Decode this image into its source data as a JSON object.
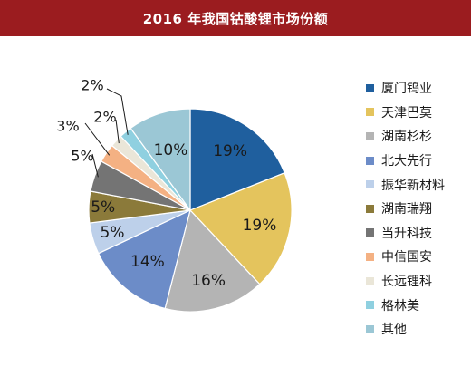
{
  "header": {
    "title": "2016 年我国钴酸锂市场份额"
  },
  "chart_data": {
    "type": "pie",
    "title": "2016 年我国钴酸锂市场份额",
    "slices": [
      {
        "label": "厦门钨业",
        "value": 19,
        "value_label": "19%",
        "color": "#1f5f9e"
      },
      {
        "label": "天津巴莫",
        "value": 19,
        "value_label": "19%",
        "color": "#e4c45d"
      },
      {
        "label": "湖南杉杉",
        "value": 16,
        "value_label": "16%",
        "color": "#b4b4b4"
      },
      {
        "label": "北大先行",
        "value": 14,
        "value_label": "14%",
        "color": "#6c8cc8"
      },
      {
        "label": "振华新材料",
        "value": 5,
        "value_label": "5%",
        "color": "#bdd0ea"
      },
      {
        "label": "湖南瑞翔",
        "value": 5,
        "value_label": "5%",
        "color": "#8b7a3a"
      },
      {
        "label": "当升科技",
        "value": 5,
        "value_label": "5%",
        "color": "#747474"
      },
      {
        "label": "中信国安",
        "value": 3,
        "value_label": "3%",
        "color": "#f4b183"
      },
      {
        "label": "长远锂科",
        "value": 2,
        "value_label": "2%",
        "color": "#eae6d8"
      },
      {
        "label": "格林美",
        "value": 2,
        "value_label": "2%",
        "color": "#8fd0e0"
      },
      {
        "label": "其他",
        "value": 10,
        "value_label": "10%",
        "color": "#9bc7d5"
      }
    ],
    "start_angle": "12 o'clock",
    "direction": "clockwise",
    "legend_position": "right"
  }
}
